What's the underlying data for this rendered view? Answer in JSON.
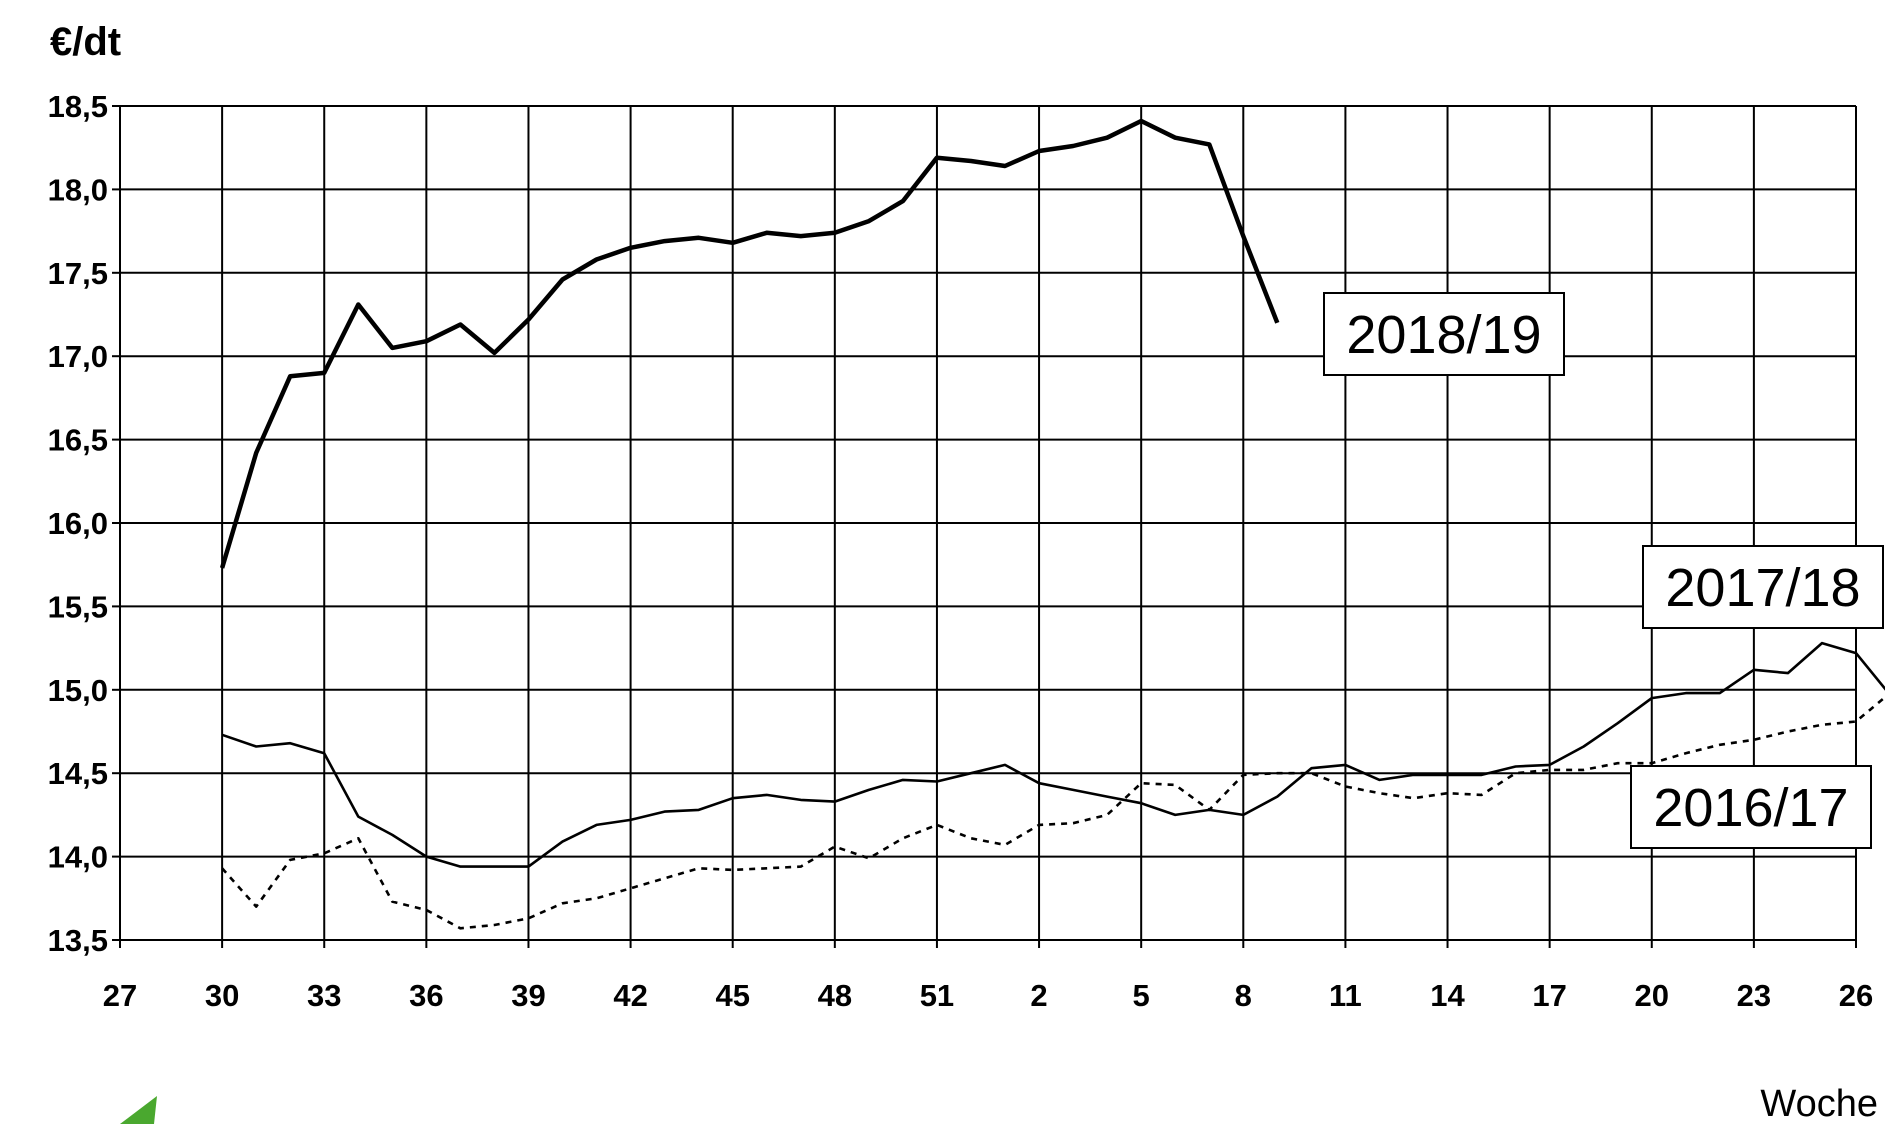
{
  "chart_data": {
    "type": "line",
    "title": "",
    "ylabel": "€/dt",
    "xlabel": "Woche",
    "ylim": [
      13.5,
      18.5
    ],
    "yticks": [
      13.5,
      14.0,
      14.5,
      15.0,
      15.5,
      16.0,
      16.5,
      17.0,
      17.5,
      18.0,
      18.5
    ],
    "ytick_labels": [
      "13,5",
      "14,0",
      "14,5",
      "15,0",
      "15,5",
      "16,0",
      "16,5",
      "17,0",
      "17,5",
      "18,0",
      "18,5"
    ],
    "xtick_labels": [
      "27",
      "30",
      "33",
      "36",
      "39",
      "42",
      "45",
      "48",
      "51",
      "2",
      "5",
      "8",
      "11",
      "14",
      "17",
      "20",
      "23",
      "26"
    ],
    "grid": true,
    "series": [
      {
        "name": "2018/19",
        "style": "solid-bold",
        "values": [
          15.73,
          16.42,
          16.88,
          16.9,
          17.31,
          17.05,
          17.09,
          17.19,
          17.02,
          17.22,
          17.46,
          17.58,
          17.65,
          17.69,
          17.71,
          17.68,
          17.74,
          17.72,
          17.74,
          17.81,
          17.93,
          18.19,
          18.17,
          18.14,
          18.23,
          18.26,
          18.31,
          18.41,
          18.31,
          18.27,
          17.72,
          17.2
        ]
      },
      {
        "name": "2017/18",
        "style": "solid",
        "values": [
          14.73,
          14.66,
          14.68,
          14.62,
          14.24,
          14.13,
          14.0,
          13.94,
          13.94,
          13.94,
          14.09,
          14.19,
          14.22,
          14.27,
          14.28,
          14.35,
          14.37,
          14.34,
          14.33,
          14.4,
          14.46,
          14.45,
          14.5,
          14.55,
          14.44,
          14.4,
          14.36,
          14.32,
          14.25,
          14.28,
          14.25,
          14.36,
          14.53,
          14.55,
          14.46,
          14.49,
          14.49,
          14.49,
          14.54,
          14.55,
          14.66,
          14.8,
          14.95,
          14.98,
          14.98,
          15.12,
          15.1,
          15.28,
          15.22,
          14.97
        ]
      },
      {
        "name": "2016/17",
        "style": "dotted",
        "values": [
          13.93,
          13.7,
          13.98,
          14.02,
          14.11,
          13.73,
          13.68,
          13.57,
          13.59,
          13.63,
          13.72,
          13.75,
          13.81,
          13.87,
          13.93,
          13.92,
          13.93,
          13.94,
          14.06,
          13.99,
          14.11,
          14.19,
          14.11,
          14.07,
          14.19,
          14.2,
          14.25,
          14.44,
          14.43,
          14.28,
          14.49,
          14.5,
          14.5,
          14.42,
          14.38,
          14.35,
          14.38,
          14.37,
          14.5,
          14.52,
          14.52,
          14.56,
          14.56,
          14.62,
          14.67,
          14.7,
          14.75,
          14.79,
          14.81,
          14.98
        ]
      }
    ],
    "annotations": [
      {
        "text": "2018/19"
      },
      {
        "text": "2017/18"
      },
      {
        "text": "2016/17"
      }
    ]
  }
}
